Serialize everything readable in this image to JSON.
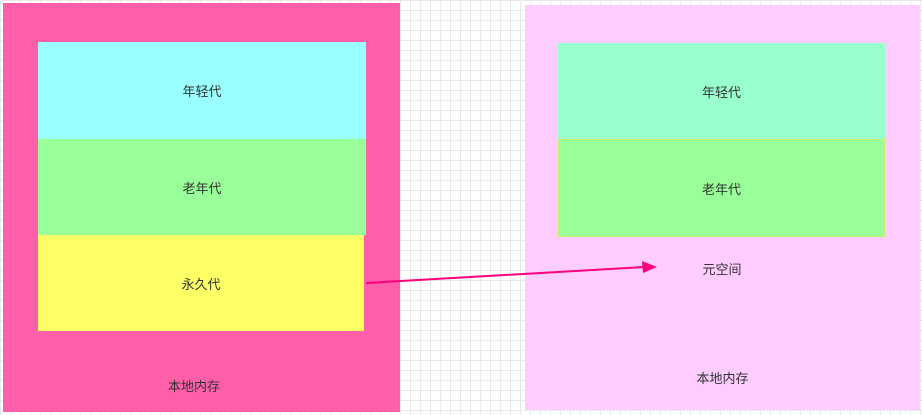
{
  "left": {
    "young": "年轻代",
    "old": "老年代",
    "permanent": "永久代",
    "native_memory": "本地内存"
  },
  "right": {
    "young": "年轻代",
    "old": "老年代",
    "metaspace": "元空间",
    "native_memory": "本地内存"
  },
  "colors": {
    "left_memory_bg": "#ff5fa8",
    "right_memory_bg": "#ffccff",
    "left_young_bg": "#99ffff",
    "left_old_bg": "#99ff99",
    "left_perm_bg": "#ffff66",
    "right_young_bg": "#99ffcc",
    "right_old_bg": "#99ff99",
    "arrow": "#ff0080"
  }
}
